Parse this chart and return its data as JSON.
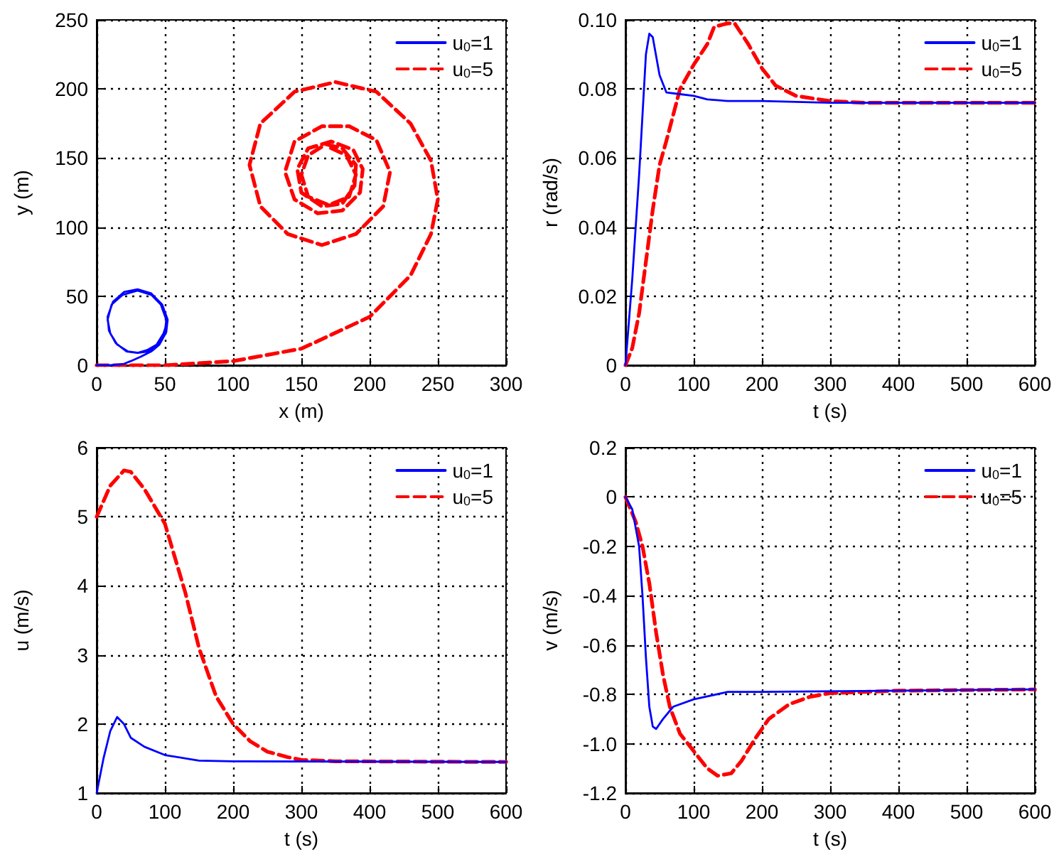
{
  "chart_data": [
    {
      "type": "line",
      "xlabel": "x (m)",
      "ylabel": "y (m)",
      "xlim": [
        0,
        300
      ],
      "xticks": [
        0,
        50,
        100,
        150,
        200,
        250,
        300
      ],
      "ylim": [
        0,
        250
      ],
      "yticks": [
        0,
        50,
        100,
        150,
        200,
        250
      ],
      "grid": true,
      "legend": "top right",
      "marker": "none",
      "series": [
        {
          "name": "u$_{0}$=1",
          "color": "#0000ff",
          "line_style": "solid",
          "x": [
            0,
            10,
            20,
            25,
            32,
            40,
            46,
            51,
            52,
            48,
            40,
            30,
            20,
            12,
            8,
            9,
            14,
            22,
            30,
            38,
            45,
            50,
            51,
            47,
            40,
            30,
            19,
            11,
            8,
            10,
            15,
            23,
            30,
            37,
            44,
            49,
            52
          ],
          "values": [
            0,
            0,
            1,
            3,
            6,
            10,
            15,
            24,
            33,
            44,
            52,
            55,
            53,
            46,
            35,
            25,
            16,
            10,
            9,
            10,
            15,
            23,
            33,
            44,
            51,
            54,
            51,
            44,
            33,
            23,
            15,
            10,
            9,
            11,
            15,
            23,
            32
          ]
        },
        {
          "name": "u$_{0}$=5",
          "color": "#ff0000",
          "line_style": "dashed",
          "x": [
            0,
            50,
            100,
            150,
            200,
            230,
            245,
            250,
            245,
            230,
            205,
            175,
            145,
            120,
            112,
            120,
            140,
            165,
            190,
            210,
            215,
            205,
            185,
            165,
            145,
            138,
            145,
            162,
            180,
            193,
            195,
            188,
            172,
            155,
            147,
            150,
            165,
            180,
            189,
            190,
            180,
            168,
            155,
            150,
            155,
            170,
            185,
            190,
            183,
            170
          ],
          "values": [
            0,
            0,
            3,
            12,
            35,
            65,
            95,
            120,
            148,
            175,
            198,
            205,
            198,
            175,
            145,
            115,
            95,
            87,
            95,
            115,
            140,
            163,
            173,
            173,
            162,
            140,
            120,
            110,
            112,
            125,
            142,
            156,
            162,
            157,
            142,
            125,
            115,
            117,
            130,
            145,
            157,
            160,
            152,
            138,
            122,
            116,
            122,
            138,
            152,
            158
          ]
        }
      ]
    },
    {
      "type": "line",
      "xlabel": "t (s)",
      "ylabel": "r (rad/s)",
      "xlim": [
        0,
        600
      ],
      "xticks": [
        0,
        100,
        200,
        300,
        400,
        500,
        600
      ],
      "ylim": [
        0,
        0.1
      ],
      "yticks": [
        0,
        0.02,
        0.04,
        0.06,
        0.08,
        {
          "value": 0.1,
          "label": "0.10"
        }
      ],
      "grid": true,
      "legend": "top right",
      "marker": "none",
      "series": [
        {
          "name": "u$_{0}$=1",
          "color": "#0000ff",
          "line_style": "solid",
          "x": [
            0,
            10,
            20,
            30,
            35,
            40,
            50,
            60,
            80,
            100,
            120,
            150,
            200,
            300,
            600
          ],
          "values": [
            0,
            0.025,
            0.055,
            0.09,
            0.096,
            0.095,
            0.084,
            0.079,
            0.0785,
            0.078,
            0.077,
            0.0765,
            0.0765,
            0.076,
            0.076
          ]
        },
        {
          "name": "u$_{0}$=5",
          "color": "#ff0000",
          "line_style": "dashed",
          "x": [
            0,
            10,
            20,
            30,
            40,
            50,
            60,
            80,
            100,
            120,
            130,
            150,
            160,
            180,
            200,
            220,
            250,
            300,
            350,
            600
          ],
          "values": [
            0,
            0.005,
            0.015,
            0.03,
            0.045,
            0.058,
            0.065,
            0.08,
            0.087,
            0.093,
            0.098,
            0.099,
            0.099,
            0.093,
            0.086,
            0.081,
            0.078,
            0.0765,
            0.076,
            0.076
          ]
        }
      ]
    },
    {
      "type": "line",
      "xlabel": "t (s)",
      "ylabel": "u (m/s)",
      "xlim": [
        0,
        600
      ],
      "xticks": [
        0,
        100,
        200,
        300,
        400,
        500,
        600
      ],
      "ylim": [
        1,
        6
      ],
      "yticks": [
        1,
        2,
        3,
        4,
        5,
        6
      ],
      "grid": true,
      "legend": "top right",
      "marker": "none",
      "series": [
        {
          "name": "u$_{0}$=1",
          "color": "#0000ff",
          "line_style": "solid",
          "x": [
            0,
            10,
            20,
            30,
            40,
            50,
            70,
            100,
            150,
            200,
            600
          ],
          "values": [
            1,
            1.5,
            1.9,
            2.1,
            2.0,
            1.8,
            1.67,
            1.55,
            1.47,
            1.46,
            1.45
          ]
        },
        {
          "name": "u$_{0}$=5",
          "color": "#ff0000",
          "line_style": "dashed",
          "x": [
            0,
            20,
            40,
            50,
            70,
            100,
            130,
            150,
            175,
            200,
            225,
            250,
            280,
            300,
            350,
            600
          ],
          "values": [
            5,
            5.45,
            5.67,
            5.65,
            5.4,
            4.9,
            3.9,
            3.1,
            2.4,
            2.0,
            1.75,
            1.6,
            1.52,
            1.48,
            1.46,
            1.45
          ]
        }
      ]
    },
    {
      "type": "line",
      "xlabel": "t (s)",
      "ylabel": "v (m/s)",
      "xlim": [
        0,
        600
      ],
      "xticks": [
        0,
        100,
        200,
        300,
        400,
        500,
        600
      ],
      "ylim": [
        -1.2,
        0.2
      ],
      "yticks": [
        -1.2,
        {
          "value": -1,
          "label": "-1.0"
        },
        -0.8,
        -0.6,
        -0.4,
        -0.2,
        0,
        0.2
      ],
      "grid": true,
      "legend": "top right",
      "marker": "none",
      "series": [
        {
          "name": "u$_{0}$=1",
          "color": "#0000ff",
          "line_style": "solid",
          "x": [
            0,
            10,
            20,
            25,
            30,
            35,
            40,
            45,
            55,
            70,
            100,
            150,
            200,
            600
          ],
          "values": [
            0,
            -0.05,
            -0.2,
            -0.4,
            -0.65,
            -0.85,
            -0.93,
            -0.94,
            -0.9,
            -0.85,
            -0.82,
            -0.79,
            -0.79,
            -0.78
          ]
        },
        {
          "name": "u$_{0}$=5",
          "color": "#ff0000",
          "line_style": "dashed",
          "x": [
            0,
            15,
            25,
            35,
            45,
            55,
            65,
            80,
            100,
            120,
            135,
            155,
            170,
            190,
            210,
            240,
            270,
            300,
            400,
            600
          ],
          "values": [
            0,
            -0.1,
            -0.2,
            -0.35,
            -0.55,
            -0.72,
            -0.85,
            -0.96,
            -1.03,
            -1.1,
            -1.13,
            -1.12,
            -1.07,
            -0.98,
            -0.9,
            -0.84,
            -0.81,
            -0.795,
            -0.785,
            -0.78
          ]
        }
      ]
    }
  ]
}
